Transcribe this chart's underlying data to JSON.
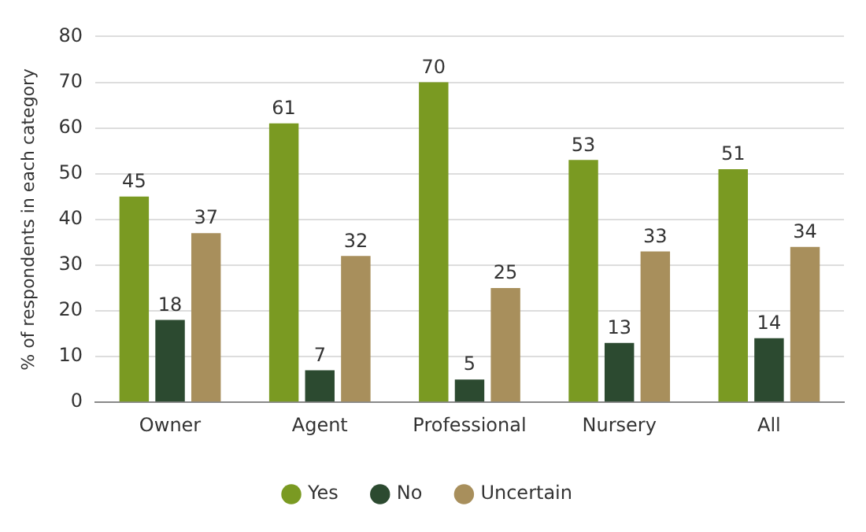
{
  "chart_data": {
    "type": "bar",
    "ylabel": "% of respondents in each category",
    "categories": [
      "Owner",
      "Agent",
      "Professional",
      "Nursery",
      "All"
    ],
    "series": [
      {
        "name": "Yes",
        "color": "#7a9a22",
        "values": [
          45,
          61,
          70,
          53,
          51
        ]
      },
      {
        "name": "No",
        "color": "#2c4a30",
        "values": [
          18,
          7,
          5,
          13,
          14
        ]
      },
      {
        "name": "Uncertain",
        "color": "#a88f5c",
        "values": [
          37,
          32,
          25,
          33,
          34
        ]
      }
    ],
    "ylim": [
      0,
      80
    ],
    "yticks": [
      0,
      10,
      20,
      30,
      40,
      50,
      60,
      70,
      80
    ],
    "grid": "y",
    "legend": "bottom",
    "data_labels": true
  }
}
